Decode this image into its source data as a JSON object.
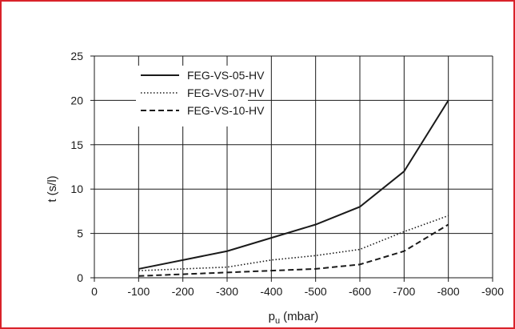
{
  "colors": {
    "frame": "#d9222a",
    "line": "#1a1a1a",
    "grid": "#1a1a1a"
  },
  "chart_data": {
    "type": "line",
    "xlabel": "p",
    "xlabel_sub": "u",
    "xlabel_unit": "(mbar)",
    "ylabel": "t (s/l)",
    "xlim": [
      0,
      -900
    ],
    "ylim": [
      0,
      25
    ],
    "x_ticks": [
      0,
      -100,
      -200,
      -300,
      -400,
      -500,
      -600,
      -700,
      -800,
      -900
    ],
    "y_ticks": [
      0,
      5,
      10,
      15,
      20,
      25
    ],
    "grid": true,
    "legend_position": "top-left",
    "x": [
      -100,
      -200,
      -300,
      -400,
      -500,
      -600,
      -700,
      -800
    ],
    "series": [
      {
        "name": "FEG-VS-05-HV",
        "style": "solid",
        "values": [
          1.0,
          2.0,
          3.0,
          4.5,
          6.0,
          8.0,
          12.0,
          20.0
        ]
      },
      {
        "name": "FEG-VS-07-HV",
        "style": "dotted",
        "values": [
          0.8,
          1.0,
          1.2,
          2.0,
          2.5,
          3.2,
          5.2,
          7.0
        ]
      },
      {
        "name": "FEG-VS-10-HV",
        "style": "dashed",
        "values": [
          0.2,
          0.4,
          0.6,
          0.8,
          1.0,
          1.5,
          3.0,
          6.0
        ]
      }
    ]
  }
}
